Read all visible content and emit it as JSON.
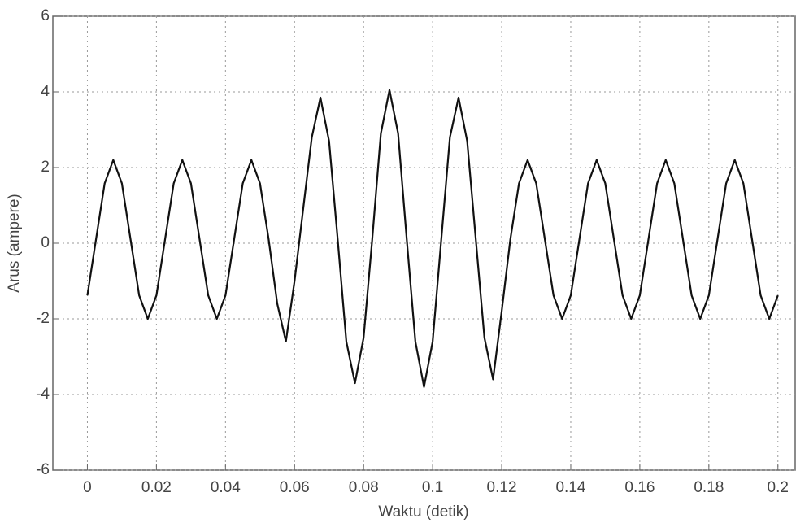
{
  "chart_data": {
    "type": "line",
    "xlabel": "Waktu (detik)",
    "ylabel": "Arus (ampere)",
    "x": [
      0,
      0.0025,
      0.005,
      0.0075,
      0.01,
      0.0125,
      0.015,
      0.0175,
      0.02,
      0.0225,
      0.025,
      0.0275,
      0.03,
      0.0325,
      0.035,
      0.0375,
      0.04,
      0.0425,
      0.045,
      0.0475,
      0.05,
      0.0525,
      0.055,
      0.0575,
      0.06,
      0.0625,
      0.065,
      0.0675,
      0.07,
      0.0725,
      0.075,
      0.0775,
      0.08,
      0.0825,
      0.085,
      0.0875,
      0.09,
      0.0925,
      0.095,
      0.0975,
      0.1,
      0.1025,
      0.105,
      0.1075,
      0.11,
      0.1125,
      0.115,
      0.1175,
      0.12,
      0.1225,
      0.125,
      0.1275,
      0.13,
      0.1325,
      0.135,
      0.1375,
      0.14,
      0.1425,
      0.145,
      0.1475,
      0.15,
      0.1525,
      0.155,
      0.1575,
      0.16,
      0.1625,
      0.165,
      0.1675,
      0.17,
      0.1725,
      0.175,
      0.1775,
      0.18,
      0.1825,
      0.185,
      0.1875,
      0.19,
      0.1925,
      0.195,
      0.1975,
      0.2
    ],
    "series": [
      {
        "color": "#111111",
        "values": [
          -1.38,
          0.1,
          1.58,
          2.2,
          1.58,
          0.1,
          -1.38,
          -2.0,
          -1.38,
          0.1,
          1.58,
          2.2,
          1.58,
          0.1,
          -1.38,
          -2.0,
          -1.38,
          0.1,
          1.58,
          2.2,
          1.58,
          0.1,
          -1.6,
          -2.6,
          -1.0,
          0.9,
          2.8,
          3.85,
          2.7,
          0.1,
          -2.6,
          -3.7,
          -2.5,
          0.1,
          2.9,
          4.05,
          2.9,
          0.1,
          -2.6,
          -3.8,
          -2.6,
          0.1,
          2.8,
          3.85,
          2.7,
          0.1,
          -2.5,
          -3.6,
          -1.8,
          0.1,
          1.58,
          2.2,
          1.58,
          0.1,
          -1.38,
          -2.0,
          -1.38,
          0.1,
          1.58,
          2.2,
          1.58,
          0.1,
          -1.38,
          -2.0,
          -1.38,
          0.1,
          1.58,
          2.2,
          1.58,
          0.1,
          -1.38,
          -2.0,
          -1.38,
          0.1,
          1.58,
          2.2,
          1.58,
          0.1,
          -1.38,
          -2.0,
          -1.38
        ]
      }
    ],
    "xlim": [
      -0.01,
      0.205
    ],
    "ylim": [
      -6,
      6
    ],
    "xticks": [
      0,
      0.02,
      0.04,
      0.06,
      0.08,
      0.1,
      0.12,
      0.14,
      0.16,
      0.18,
      0.2
    ],
    "yticks": [
      -6,
      -4,
      -2,
      0,
      2,
      4,
      6
    ],
    "grid": true
  }
}
